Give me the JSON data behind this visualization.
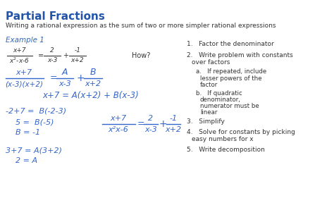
{
  "title": "Partial Fractions",
  "subtitle": "Writing a rational expression as the sum of two or more simpler rational expressions",
  "bg_color": "#ffffff",
  "title_color": "#2255aa",
  "example_color": "#3366bb",
  "handwriting_color": "#3366cc",
  "text_color": "#333333",
  "example_label": "Example 1",
  "how_text": "How?",
  "figsize": [
    4.74,
    2.88
  ],
  "dpi": 100
}
